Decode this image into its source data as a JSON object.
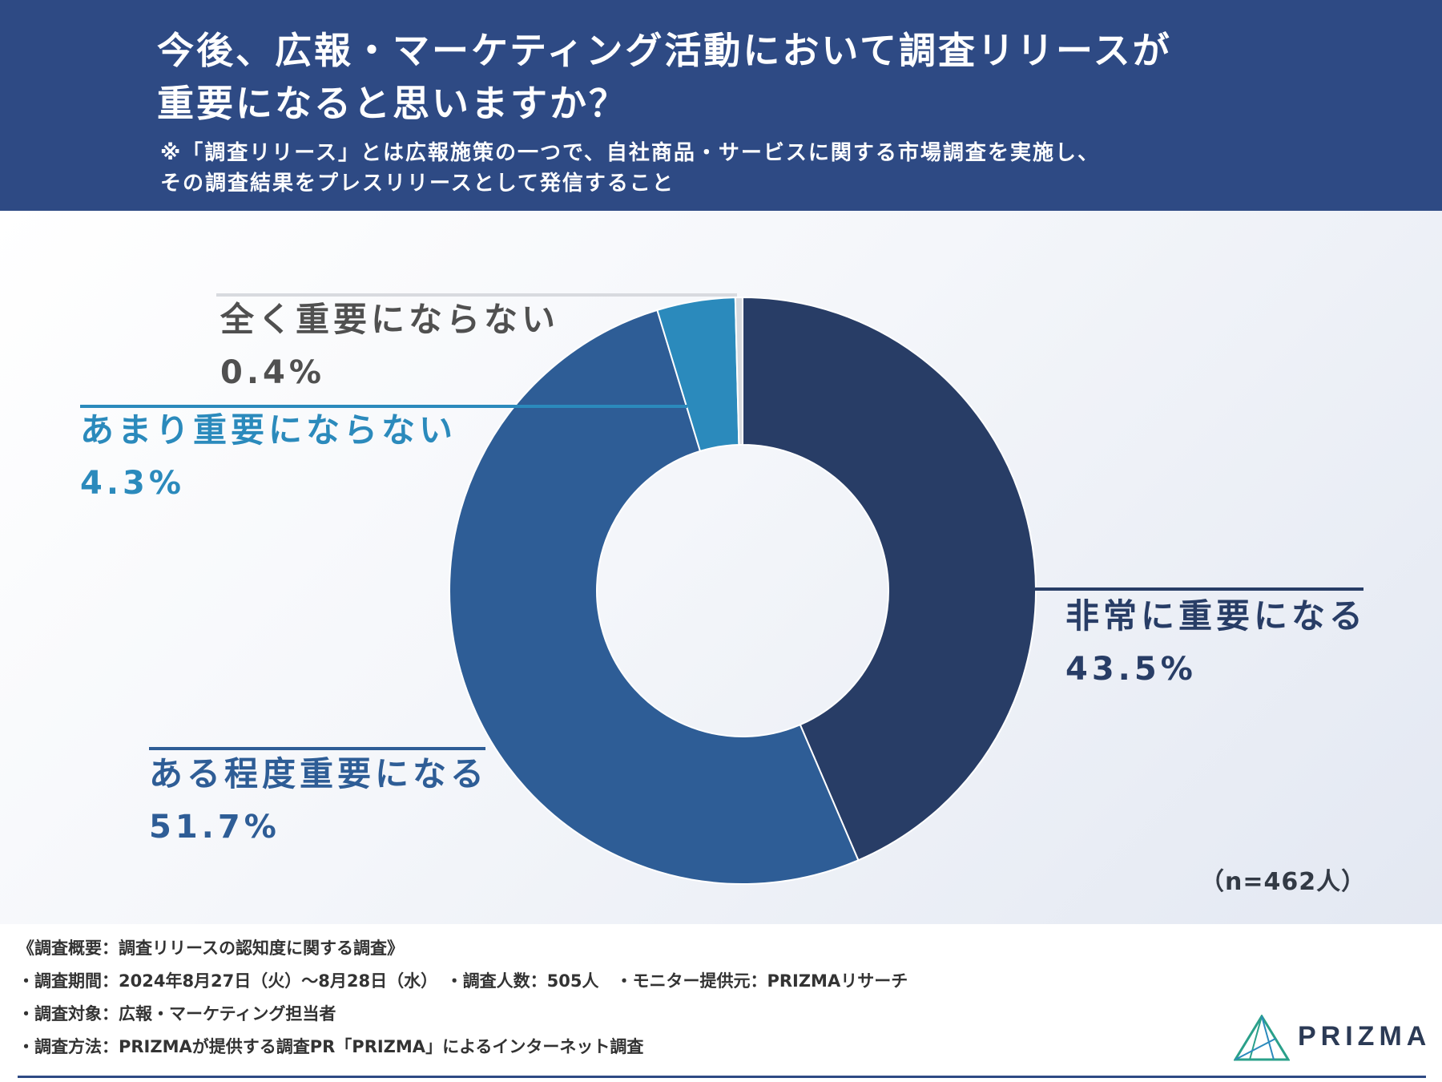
{
  "header": {
    "title_line1": "今後、広報・マーケティング活動において調査リリースが",
    "title_line2": "重要になると思いますか？",
    "note_line1": "※「調査リリース」とは広報施策の一つで、自社商品・サービスに関する市場調査を実施し、",
    "note_line2": "その調査結果をプレスリリースとして発信すること"
  },
  "chart_data": {
    "type": "pie",
    "donut": true,
    "categories": [
      "非常に重要になる",
      "ある程度重要になる",
      "あまり重要にならない",
      "全く重要にならない"
    ],
    "values": [
      43.5,
      51.7,
      4.3,
      0.4
    ],
    "value_labels": [
      "43.5%",
      "51.7%",
      "4.3%",
      "0.4%"
    ],
    "colors": [
      "#283d66",
      "#2e5d96",
      "#2b8abc",
      "#d8dadf"
    ],
    "start_angle": "top",
    "direction": "clockwise",
    "n_label": "（n=462人）"
  },
  "label_colors": [
    "#283d66",
    "#2e5d96",
    "#2b8abc",
    "#505050"
  ],
  "footer": {
    "summary": "《調査概要：調査リリースの認知度に関する調査》",
    "period": "・調査期間：2024年8月27日（火）〜8月28日（水）　・調査人数：505人　・モニター提供元：PRIZMAリサーチ",
    "target": "・調査対象：広報・マーケティング担当者",
    "method": "・調査方法：PRIZMAが提供する調査PR「PRIZMA」によるインターネット調査",
    "logo_text": "PRIZMA"
  }
}
